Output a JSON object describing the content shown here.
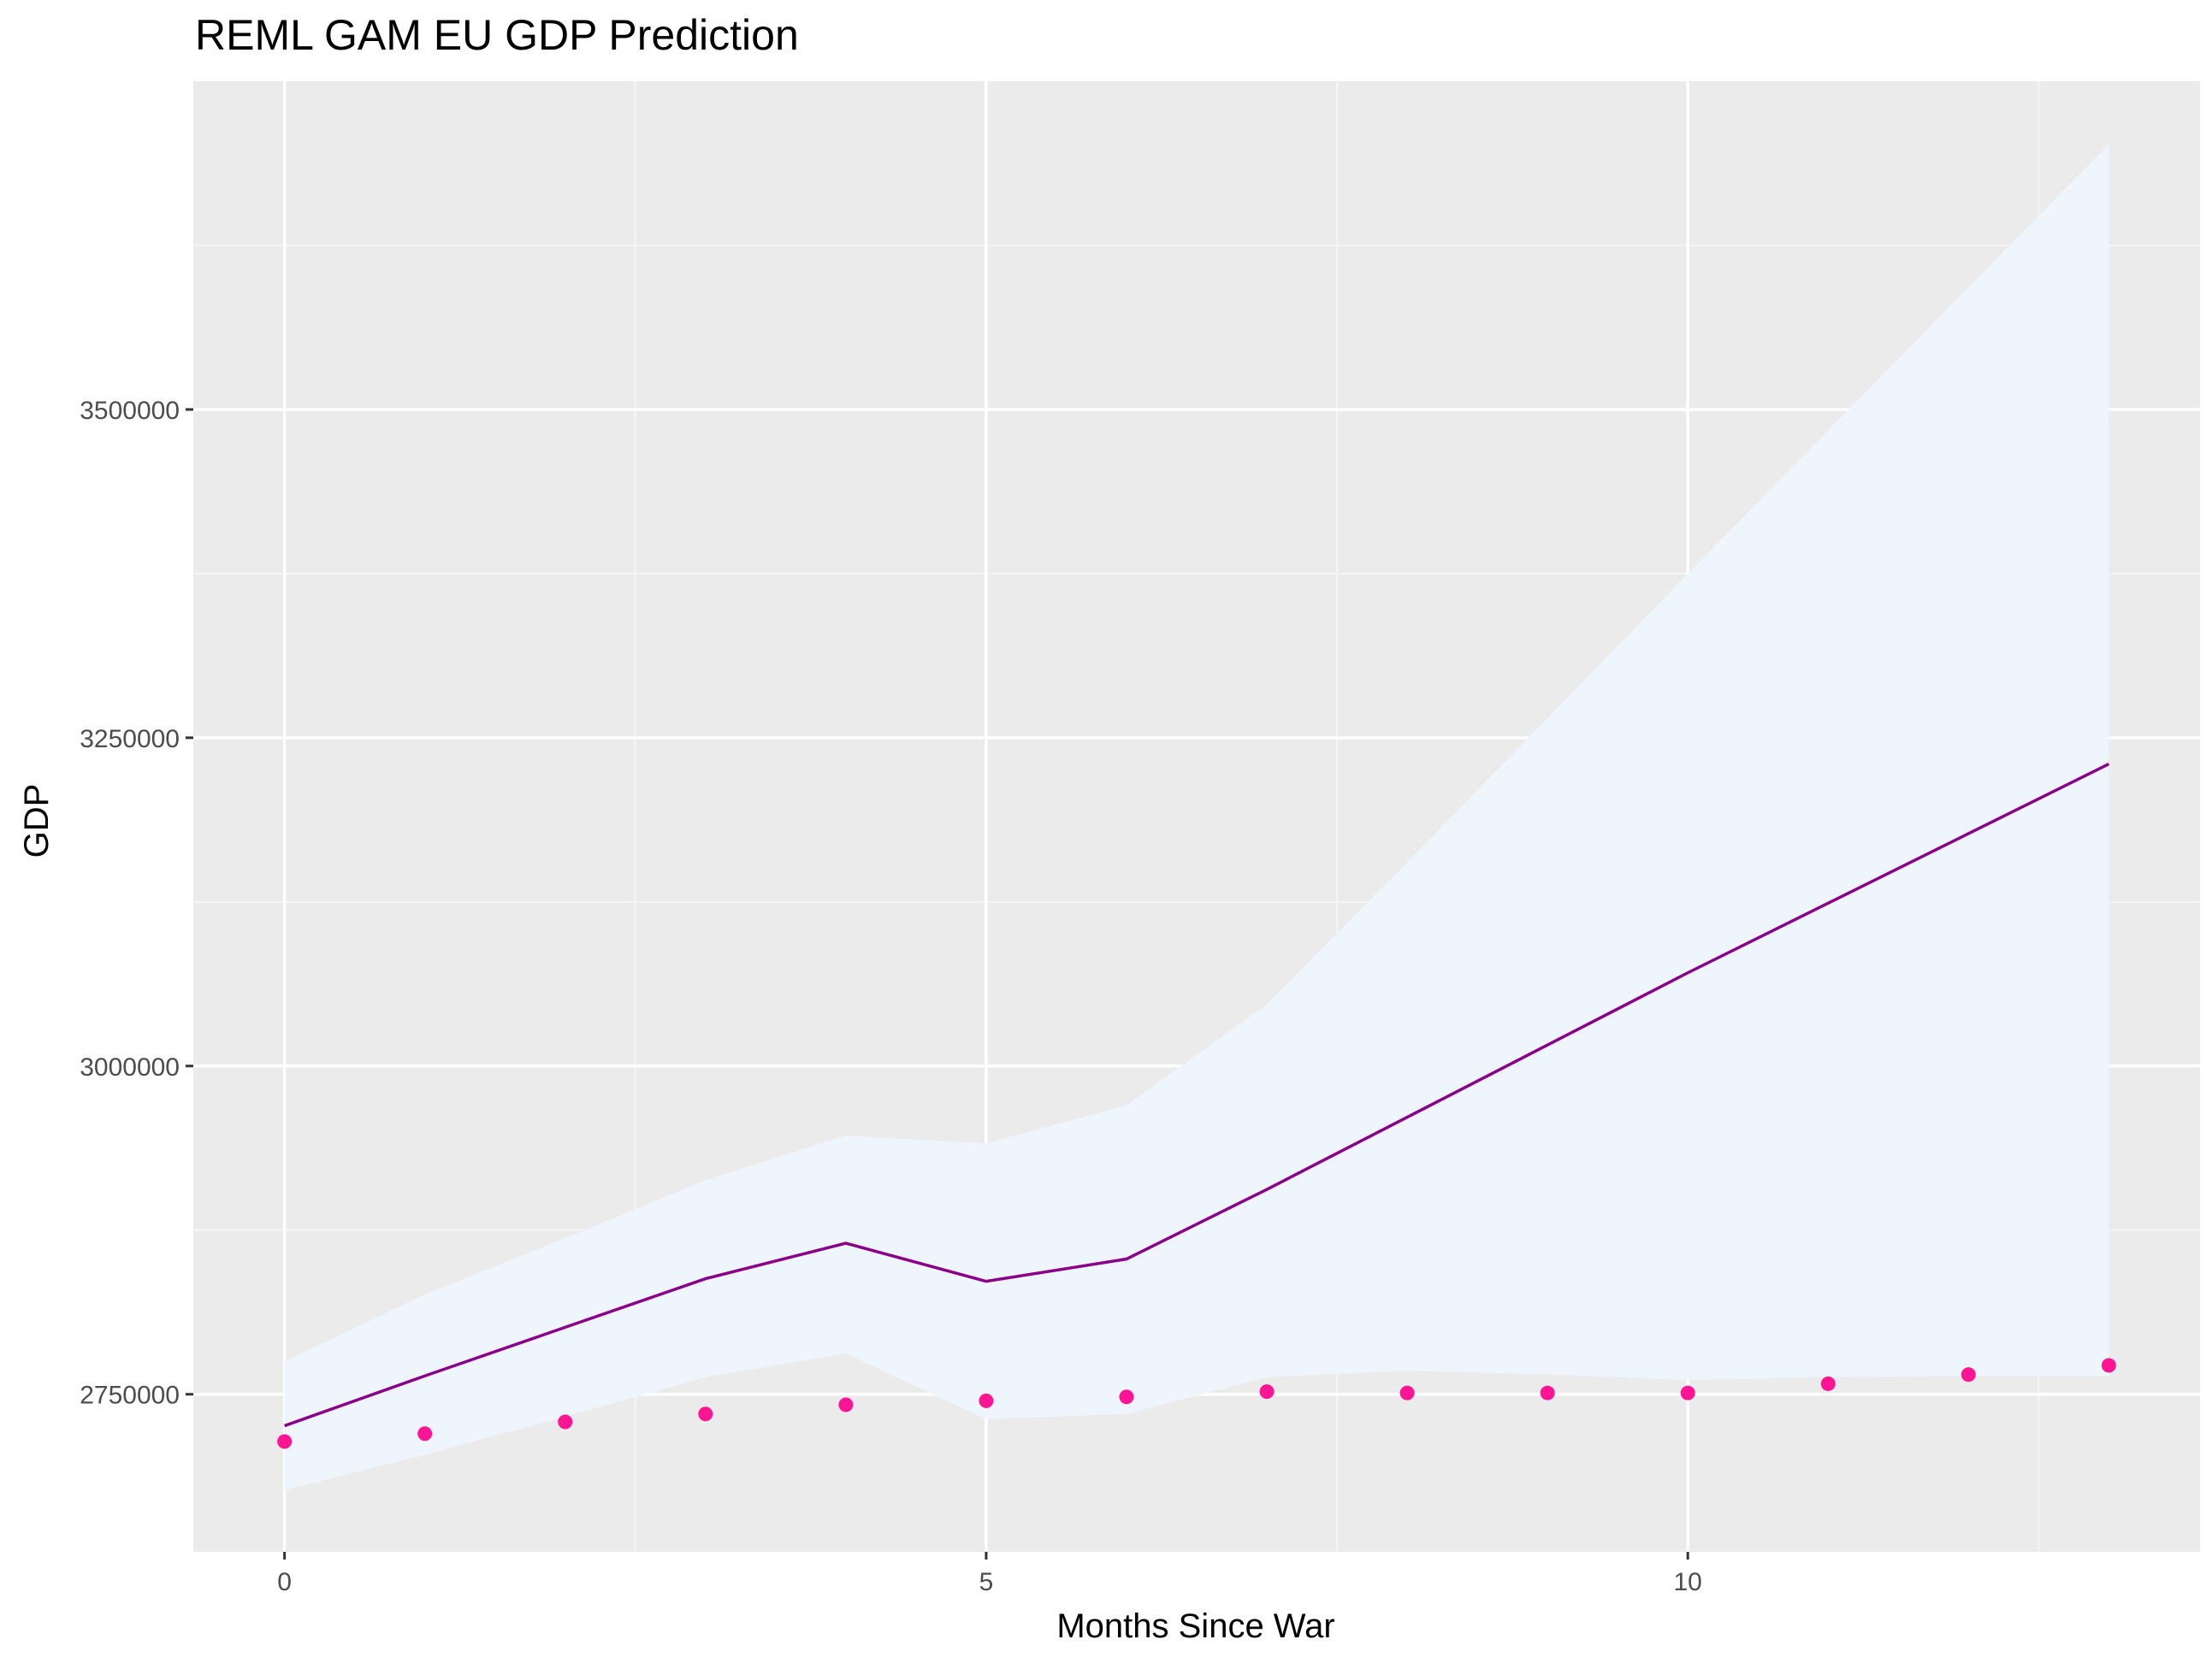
{
  "chart_data": {
    "type": "line",
    "title": "REML GAM EU GDP Prediction",
    "xlabel": "Months Since War",
    "ylabel": "GDP",
    "xlim": [
      -0.65,
      13.65
    ],
    "ylim": [
      2630000,
      3750000
    ],
    "x_ticks": [
      0,
      5,
      10
    ],
    "x_tick_labels": [
      "0",
      "5",
      "10"
    ],
    "y_ticks": [
      2750000,
      3000000,
      3250000,
      3500000
    ],
    "y_tick_labels": [
      "2750000",
      "3000000",
      "3250000",
      "3500000"
    ],
    "grid": true,
    "legend": "none",
    "x": [
      0,
      1,
      2,
      3,
      4,
      5,
      6,
      7,
      8,
      9,
      10,
      11,
      12,
      13
    ],
    "series": [
      {
        "kind": "ribbon",
        "lower": [
          2677000,
          2704000,
          2733000,
          2763000,
          2781000,
          2731000,
          2735000,
          2763000,
          2768000,
          2765000,
          2761000,
          2763000,
          2764000,
          2764000
        ],
        "upper": [
          2775000,
          2826000,
          2869000,
          2913000,
          2947000,
          2941000,
          2970000,
          3047000,
          3155000,
          3265000,
          3375000,
          3484000,
          3593000,
          3702000
        ],
        "color": "#eef5fc"
      },
      {
        "kind": "line",
        "values": [
          2726000,
          2764000,
          2801000,
          2838000,
          2865000,
          2836000,
          2853000,
          2906000,
          2961000,
          3016000,
          3071000,
          3124000,
          3177000,
          3230000
        ],
        "color": "#8b008b"
      },
      {
        "kind": "points",
        "values": [
          2714000,
          2720000,
          2729000,
          2735000,
          2742000,
          2745000,
          2748000,
          2752000,
          2751000,
          2751000,
          2751000,
          2758000,
          2765000,
          2772000
        ],
        "color": "#ff1493"
      }
    ]
  },
  "colors": {
    "panel_background": "#ebebeb",
    "grid_major": "#ffffff",
    "grid_minor": "#f5f5f5"
  }
}
